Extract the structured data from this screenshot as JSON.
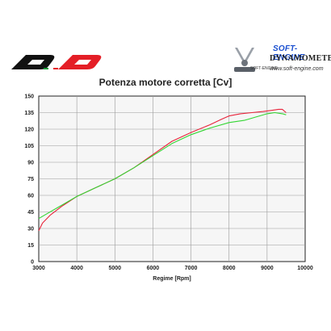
{
  "brand": {
    "left_logo_icon": "qd-logo",
    "right_title": "SOFT-ENGINE",
    "right_subtitle": "DYNAMOMETERS",
    "right_word": "SOFT-ENGINE",
    "right_url": "www.soft-engine.com",
    "right_logo_icon": "engine-v-logo"
  },
  "chart_data": {
    "type": "line",
    "title": "Potenza motore corretta [Cv]",
    "xlabel": "Regime [Rpm]",
    "ylabel": "",
    "xlim": [
      3000,
      10000
    ],
    "ylim": [
      0,
      150
    ],
    "xticks": [
      "3000",
      "4000",
      "5000",
      "6000",
      "7000",
      "8000",
      "9000",
      "10000"
    ],
    "yticks": [
      "0",
      "15",
      "30",
      "45",
      "60",
      "75",
      "90",
      "105",
      "120",
      "135",
      "150"
    ],
    "grid": true,
    "series": [
      {
        "color": "#e8233a",
        "x": [
          3000,
          3100,
          3300,
          3600,
          4000,
          4500,
          5000,
          5500,
          6000,
          6500,
          7000,
          7500,
          7800,
          8000,
          8300,
          8600,
          8900,
          9100,
          9300,
          9400,
          9500
        ],
        "y": [
          28,
          35,
          42,
          50,
          59,
          67,
          75,
          85,
          97,
          109,
          117,
          124,
          129,
          132,
          134,
          135,
          136,
          137,
          138,
          138,
          135
        ]
      },
      {
        "color": "#33d633",
        "x": [
          3000,
          3200,
          3500,
          4000,
          4500,
          5000,
          5500,
          6000,
          6500,
          7000,
          7500,
          8000,
          8200,
          8400,
          8700,
          9000,
          9200,
          9400,
          9500
        ],
        "y": [
          39,
          43,
          49,
          59,
          67,
          75,
          85,
          96,
          107,
          115,
          121,
          126,
          127,
          128,
          131,
          134,
          135,
          134,
          133
        ]
      }
    ]
  }
}
